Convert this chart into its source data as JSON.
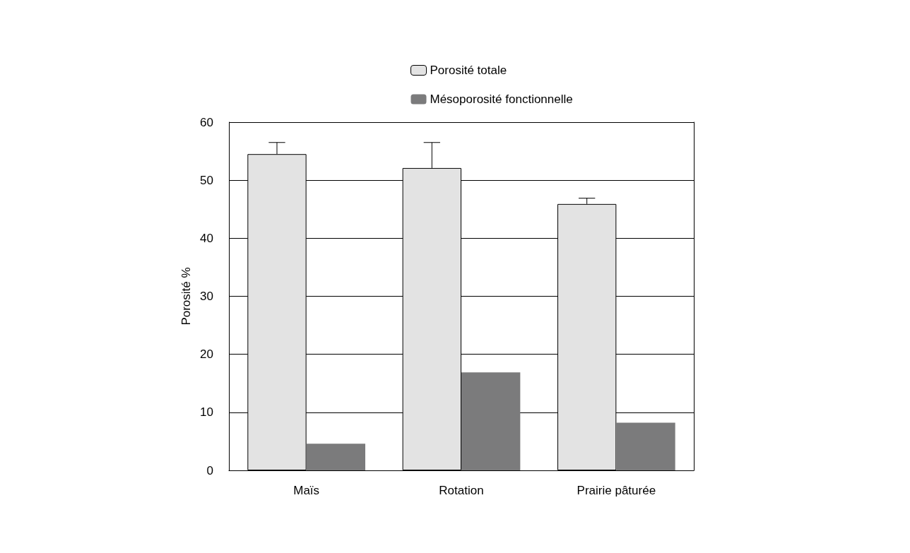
{
  "chart_data": {
    "type": "bar",
    "ylabel": "Porosité %",
    "categories": [
      "Maïs",
      "Rotation",
      "Prairie pâturée"
    ],
    "series": [
      {
        "name": "Porosité totale",
        "color": "#e3e3e3",
        "values": [
          54.5,
          52.1,
          45.9
        ],
        "errors": [
          [
            54.5,
            56.5
          ],
          [
            52.1,
            56.5
          ],
          [
            45.9,
            46.9
          ]
        ]
      },
      {
        "name": "Mésoporosité fonctionnelle",
        "color": "#7b7b7c",
        "values": [
          4.6,
          16.9,
          8.2
        ]
      }
    ],
    "ylim": [
      0,
      60
    ],
    "yticks": [
      0,
      10,
      20,
      30,
      40,
      50,
      60
    ],
    "grid": "y",
    "legend": "top"
  }
}
